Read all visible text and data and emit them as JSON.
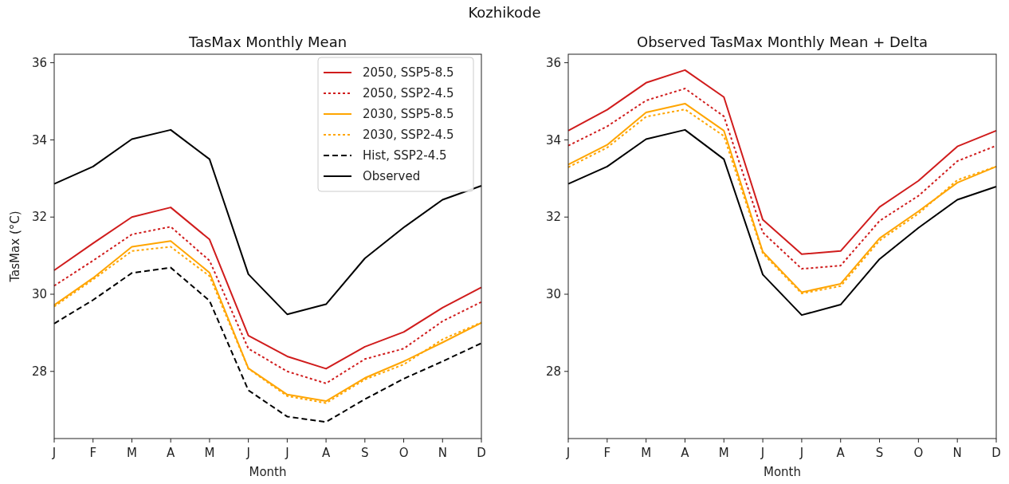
{
  "chart_data": [
    {
      "type": "line",
      "title": "TasMax Monthly Mean",
      "xlabel": "Month",
      "ylabel": "TasMax (°C)",
      "annotations": [
        "Kozhikode"
      ],
      "categories": [
        "J",
        "F",
        "M",
        "A",
        "M",
        "J",
        "J",
        "A",
        "S",
        "O",
        "N",
        "D"
      ],
      "ylim": [
        26.26,
        36.22
      ],
      "yticks": [
        28,
        30,
        32,
        34,
        36
      ],
      "grid": false,
      "legend": "top right",
      "series": [
        {
          "name": "2050, SSP5-8.5",
          "color": "#d01c1c",
          "line_style": "solid",
          "values": [
            30.62,
            31.32,
            32.0,
            32.25,
            31.42,
            28.93,
            28.39,
            28.07,
            28.64,
            29.02,
            29.65,
            30.18
          ]
        },
        {
          "name": "2050, SSP2-4.5",
          "color": "#d01c1c",
          "line_style": "dotted",
          "values": [
            30.22,
            30.87,
            31.55,
            31.75,
            30.87,
            28.59,
            28.0,
            27.69,
            28.32,
            28.59,
            29.3,
            29.8
          ]
        },
        {
          "name": "2030, SSP5-8.5",
          "color": "#ffa500",
          "line_style": "solid",
          "values": [
            29.72,
            30.42,
            31.23,
            31.38,
            30.56,
            28.08,
            27.4,
            27.23,
            27.83,
            28.26,
            28.75,
            29.26
          ]
        },
        {
          "name": "2030, SSP2-4.5",
          "color": "#ffa500",
          "line_style": "dotted",
          "values": [
            29.68,
            30.38,
            31.12,
            31.23,
            30.47,
            28.07,
            27.36,
            27.18,
            27.79,
            28.18,
            28.83,
            29.27
          ]
        },
        {
          "name": "Hist, SSP2-4.5",
          "color": "#000000",
          "line_style": "dashed",
          "values": [
            29.24,
            29.85,
            30.55,
            30.69,
            29.83,
            27.51,
            26.83,
            26.69,
            27.28,
            27.81,
            28.26,
            28.73
          ]
        },
        {
          "name": "Observed",
          "color": "#000000",
          "line_style": "solid",
          "values": [
            32.86,
            33.31,
            34.02,
            34.26,
            33.5,
            30.52,
            29.48,
            29.74,
            30.93,
            31.73,
            32.45,
            32.81
          ]
        }
      ]
    },
    {
      "type": "line",
      "title": "Observed TasMax Monthly Mean + Delta",
      "xlabel": "Month",
      "categories": [
        "J",
        "F",
        "M",
        "A",
        "M",
        "J",
        "J",
        "A",
        "S",
        "O",
        "N",
        "D"
      ],
      "ylim": [
        26.26,
        36.22
      ],
      "yticks": [
        28,
        30,
        32,
        34,
        36
      ],
      "grid": false,
      "legend": false,
      "series": [
        {
          "color": "#d01c1c",
          "line_style": "solid",
          "values": [
            34.24,
            34.78,
            35.48,
            35.81,
            35.11,
            31.93,
            31.04,
            31.12,
            32.26,
            32.94,
            33.83,
            34.24
          ]
        },
        {
          "color": "#d01c1c",
          "line_style": "dotted",
          "values": [
            33.85,
            34.35,
            35.02,
            35.33,
            34.61,
            31.6,
            30.66,
            30.74,
            31.9,
            32.55,
            33.45,
            33.85
          ]
        },
        {
          "color": "#ffa500",
          "line_style": "solid",
          "values": [
            33.36,
            33.87,
            34.71,
            34.94,
            34.24,
            31.1,
            30.05,
            30.27,
            31.45,
            32.15,
            32.89,
            33.31
          ]
        },
        {
          "color": "#ffa500",
          "line_style": "dotted",
          "values": [
            33.29,
            33.8,
            34.6,
            34.79,
            34.1,
            31.06,
            30.02,
            30.21,
            31.39,
            32.09,
            32.96,
            33.31
          ]
        },
        {
          "color": "#000000",
          "line_style": "solid",
          "values": [
            32.86,
            33.31,
            34.02,
            34.26,
            33.5,
            30.51,
            29.46,
            29.73,
            30.91,
            31.72,
            32.45,
            32.79
          ]
        }
      ]
    }
  ]
}
